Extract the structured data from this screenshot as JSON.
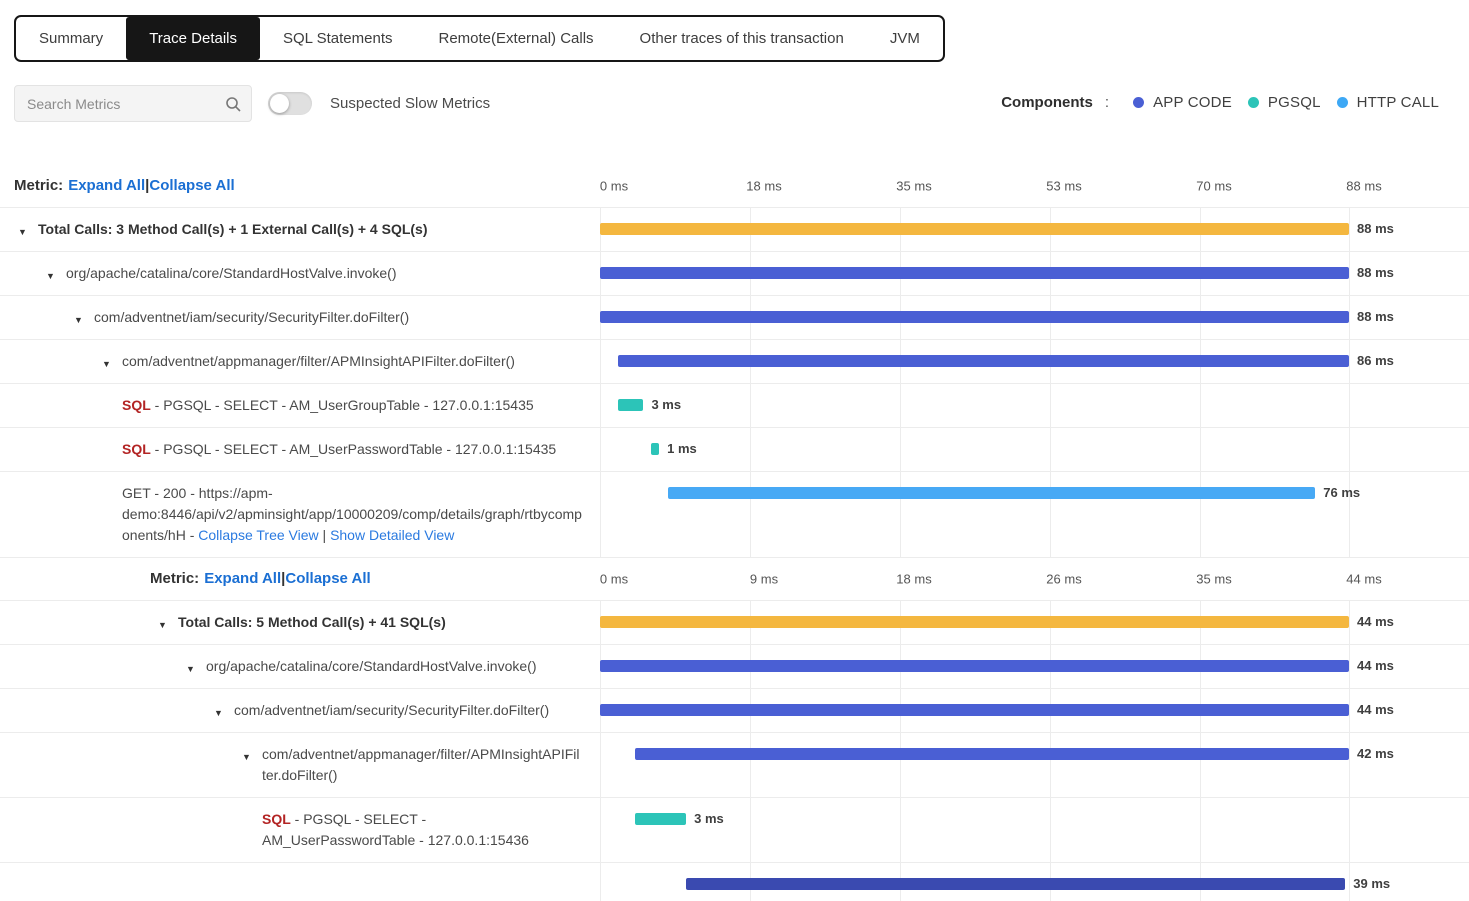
{
  "tabs": {
    "items": [
      {
        "label": "Summary",
        "active": false
      },
      {
        "label": "Trace Details",
        "active": true
      },
      {
        "label": "SQL Statements",
        "active": false
      },
      {
        "label": "Remote(External) Calls",
        "active": false
      },
      {
        "label": "Other traces of this transaction",
        "active": false
      },
      {
        "label": "JVM",
        "active": false
      }
    ]
  },
  "toolbar": {
    "search_placeholder": "Search Metrics",
    "toggle_label": "Suspected Slow Metrics",
    "toggle_on": false,
    "components_label": "Components",
    "components_separator": ":",
    "legend": [
      {
        "label": "APP CODE",
        "color": "#4a5fd4"
      },
      {
        "label": "PGSQL",
        "color": "#2cc4b8"
      },
      {
        "label": "HTTP CALL",
        "color": "#3da8f5"
      }
    ]
  },
  "palette": {
    "total": "#f4b73f",
    "appcode": "#4a5fd4",
    "pgsql": "#2cc4b8",
    "http": "#47a9f5",
    "method_dark": "#3a4ab0"
  },
  "rows": [
    {
      "type": "axis",
      "depth": 0,
      "metric_label": "Metric:",
      "expand_label": "Expand All",
      "separator": "|",
      "collapse_label": "Collapse All",
      "ticks": [
        "0 ms",
        "18 ms",
        "35 ms",
        "53 ms",
        "70 ms",
        "88 ms"
      ]
    },
    {
      "type": "call",
      "depth": 0,
      "arrow": true,
      "bold": true,
      "parts": [
        {
          "t": "text",
          "text": "Total Calls: 3 Method Call(s) + 1 External Call(s) + 4 SQL(s)"
        }
      ],
      "bar": {
        "start_pct": 0,
        "width_pct": 100,
        "color": "total"
      },
      "value": "88 ms"
    },
    {
      "type": "call",
      "depth": 1,
      "arrow": true,
      "bold": false,
      "parts": [
        {
          "t": "text",
          "text": "org/apache/catalina/core/StandardHostValve.invoke()"
        }
      ],
      "bar": {
        "start_pct": 0,
        "width_pct": 100,
        "color": "appcode"
      },
      "value": "88 ms"
    },
    {
      "type": "call",
      "depth": 2,
      "arrow": true,
      "bold": false,
      "parts": [
        {
          "t": "text",
          "text": "com/adventnet/iam/security/SecurityFilter.doFilter()"
        }
      ],
      "bar": {
        "start_pct": 0,
        "width_pct": 100,
        "color": "appcode"
      },
      "value": "88 ms"
    },
    {
      "type": "call",
      "depth": 3,
      "arrow": true,
      "bold": false,
      "parts": [
        {
          "t": "text",
          "text": "com/adventnet/appmanager/filter/APMInsightAPIFilter.doFilter()"
        }
      ],
      "bar": {
        "start_pct": 2.4,
        "width_pct": 97.6,
        "color": "appcode"
      },
      "value": "86 ms"
    },
    {
      "type": "call",
      "depth": 3,
      "arrow": false,
      "bold": false,
      "parts": [
        {
          "t": "sql",
          "text": "SQL"
        },
        {
          "t": "text",
          "text": " - PGSQL - SELECT - AM_UserGroupTable - 127.0.0.1:15435"
        }
      ],
      "bar": {
        "start_pct": 2.4,
        "width_pct": 3.4,
        "color": "pgsql"
      },
      "value": "3 ms"
    },
    {
      "type": "call",
      "depth": 3,
      "arrow": false,
      "bold": false,
      "parts": [
        {
          "t": "sql",
          "text": "SQL"
        },
        {
          "t": "text",
          "text": " - PGSQL - SELECT - AM_UserPasswordTable - 127.0.0.1:15435"
        }
      ],
      "bar": {
        "start_pct": 6.8,
        "width_pct": 1.1,
        "color": "pgsql"
      },
      "value": "1 ms"
    },
    {
      "type": "call",
      "depth": 3,
      "arrow": false,
      "bold": false,
      "parts": [
        {
          "t": "text",
          "text": "GET - 200 - https://apm-demo:8446/api/v2/apminsight/app/10000209/comp/details/graph/rtbycomponents/hH - "
        },
        {
          "t": "link",
          "text": "Collapse Tree View"
        },
        {
          "t": "text",
          "text": " | "
        },
        {
          "t": "link",
          "text": "Show Detailed View"
        }
      ],
      "bar": {
        "start_pct": 9.1,
        "width_pct": 86.4,
        "color": "http"
      },
      "value": "76 ms"
    },
    {
      "type": "axis",
      "depth": 4,
      "metric_label": "Metric:",
      "expand_label": "Expand All",
      "separator": "|",
      "collapse_label": "Collapse All",
      "ticks": [
        "0 ms",
        "9 ms",
        "18 ms",
        "26 ms",
        "35 ms",
        "44 ms"
      ]
    },
    {
      "type": "call",
      "depth": 5,
      "arrow": true,
      "bold": true,
      "parts": [
        {
          "t": "text",
          "text": "Total Calls: 5 Method Call(s) + 41 SQL(s)"
        }
      ],
      "bar": {
        "start_pct": 0,
        "width_pct": 100,
        "color": "total"
      },
      "value": "44 ms"
    },
    {
      "type": "call",
      "depth": 6,
      "arrow": true,
      "bold": false,
      "parts": [
        {
          "t": "text",
          "text": "org/apache/catalina/core/StandardHostValve.invoke()"
        }
      ],
      "bar": {
        "start_pct": 0,
        "width_pct": 100,
        "color": "appcode"
      },
      "value": "44 ms"
    },
    {
      "type": "call",
      "depth": 7,
      "arrow": true,
      "bold": false,
      "parts": [
        {
          "t": "text",
          "text": "com/adventnet/iam/security/SecurityFilter.doFilter()"
        }
      ],
      "bar": {
        "start_pct": 0,
        "width_pct": 100,
        "color": "appcode"
      },
      "value": "44 ms"
    },
    {
      "type": "call",
      "depth": 8,
      "arrow": true,
      "bold": false,
      "parts": [
        {
          "t": "text",
          "text": "com/adventnet/appmanager/filter/APMInsightAPIFilter.doFilter()"
        }
      ],
      "bar": {
        "start_pct": 4.7,
        "width_pct": 95.3,
        "color": "appcode"
      },
      "value": "42 ms"
    },
    {
      "type": "call",
      "depth": 8,
      "arrow": false,
      "bold": false,
      "parts": [
        {
          "t": "sql",
          "text": "SQL"
        },
        {
          "t": "text",
          "text": " - PGSQL - SELECT - AM_UserPasswordTable - 127.0.0.1:15436"
        }
      ],
      "bar": {
        "start_pct": 4.7,
        "width_pct": 6.8,
        "color": "pgsql"
      },
      "value": "3 ms"
    },
    {
      "type": "call",
      "depth": 8,
      "arrow": false,
      "bold": false,
      "parts": [],
      "bar": {
        "start_pct": 11.5,
        "width_pct": 88,
        "color": "method_dark"
      },
      "value": "39 ms"
    }
  ]
}
